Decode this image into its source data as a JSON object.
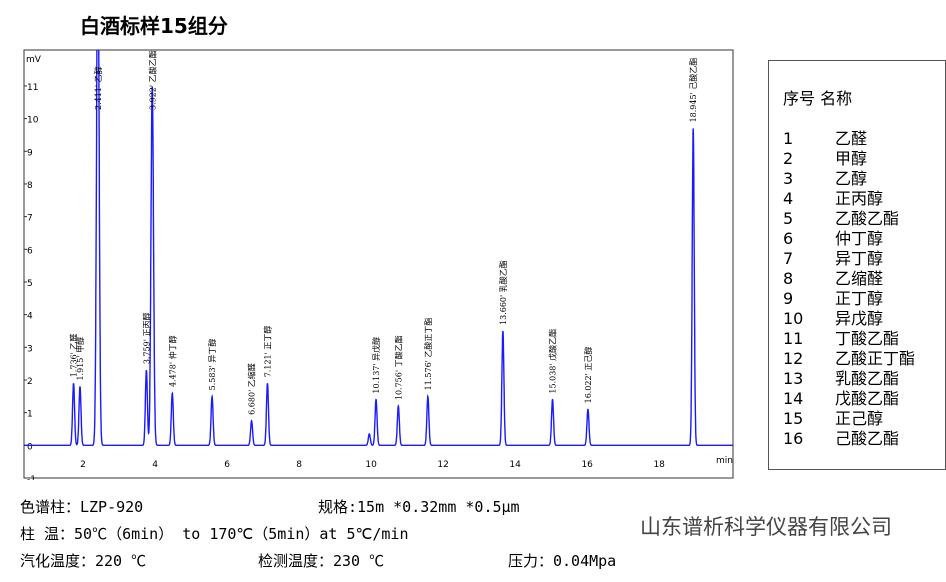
{
  "title": "白酒标样15组分",
  "chart_data": {
    "type": "line",
    "xlabel": "min",
    "ylabel": "mV",
    "xlim": [
      0.36,
      20.05
    ],
    "ylim": [
      -1,
      12.1
    ],
    "xticks": [
      2,
      4,
      6,
      8,
      10,
      12,
      14,
      16,
      18
    ],
    "yticks": [
      -1,
      0,
      1,
      2,
      3,
      4,
      5,
      6,
      7,
      8,
      9,
      10,
      11
    ],
    "color": "#1a1aff",
    "peaks": [
      {
        "rt": 1.736,
        "height": 1.9,
        "label": "1.736' 乙醛"
      },
      {
        "rt": 1.915,
        "height": 1.8,
        "label": "1.915' 甲醇"
      },
      {
        "rt": 2.411,
        "height": 16,
        "label": "2.411' 乙醇"
      },
      {
        "rt": 3.759,
        "height": 2.3,
        "label": "3.759' 正丙醇"
      },
      {
        "rt": 3.922,
        "height": 11,
        "label": "3.922' 乙酸乙酯"
      },
      {
        "rt": 4.478,
        "height": 1.6,
        "label": "4.478' 仲丁醇"
      },
      {
        "rt": 5.583,
        "height": 1.5,
        "label": "5.583' 异丁醇"
      },
      {
        "rt": 6.68,
        "height": 0.75,
        "label": "6.680' 乙缩醛"
      },
      {
        "rt": 7.121,
        "height": 1.9,
        "label": "7.121' 正丁醇"
      },
      {
        "rt": 9.95,
        "height": 0.35,
        "label": ""
      },
      {
        "rt": 10.137,
        "height": 1.4,
        "label": "10.137' 异戊醇"
      },
      {
        "rt": 10.756,
        "height": 1.2,
        "label": "10.756' 丁酸乙酯"
      },
      {
        "rt": 11.576,
        "height": 1.5,
        "label": "11.576' 乙酸正丁酯"
      },
      {
        "rt": 13.66,
        "height": 3.5,
        "label": "13.660' 乳酸乙酯"
      },
      {
        "rt": 15.038,
        "height": 1.4,
        "label": "15.038' 戊酸乙酯"
      },
      {
        "rt": 16.022,
        "height": 1.1,
        "label": "16.022' 正己醇"
      },
      {
        "rt": 18.945,
        "height": 9.7,
        "label": "18.945' 己酸乙酯"
      }
    ]
  },
  "legend": {
    "header_no": "序号",
    "header_name": "名称",
    "items": [
      [
        "1",
        "乙醛"
      ],
      [
        "2",
        "甲醇"
      ],
      [
        "3",
        "乙醇"
      ],
      [
        "4",
        "正丙醇"
      ],
      [
        "5",
        "乙酸乙酯"
      ],
      [
        "6",
        "仲丁醇"
      ],
      [
        "7",
        "异丁醇"
      ],
      [
        "8",
        "乙缩醛"
      ],
      [
        "9",
        "正丁醇"
      ],
      [
        "10",
        "异戊醇"
      ],
      [
        "11",
        "丁酸乙酯"
      ],
      [
        "12",
        "乙酸正丁酯"
      ],
      [
        "13",
        "乳酸乙酯"
      ],
      [
        "14",
        "戊酸乙酯"
      ],
      [
        "15",
        "正己醇"
      ],
      [
        "16",
        "己酸乙酯"
      ]
    ]
  },
  "info": {
    "column": "色谱柱：LZP-920",
    "spec": "规格:15m *0.32mm *0.5μm",
    "temp": "柱 温：50℃（6min） to 170℃（5min）at 5℃/min",
    "vap": "汽化温度：220 ℃",
    "det": "检测温度：230 ℃",
    "pressure": "压力：0.04Mpa"
  },
  "company": "山东谱析科学仪器有限公司"
}
